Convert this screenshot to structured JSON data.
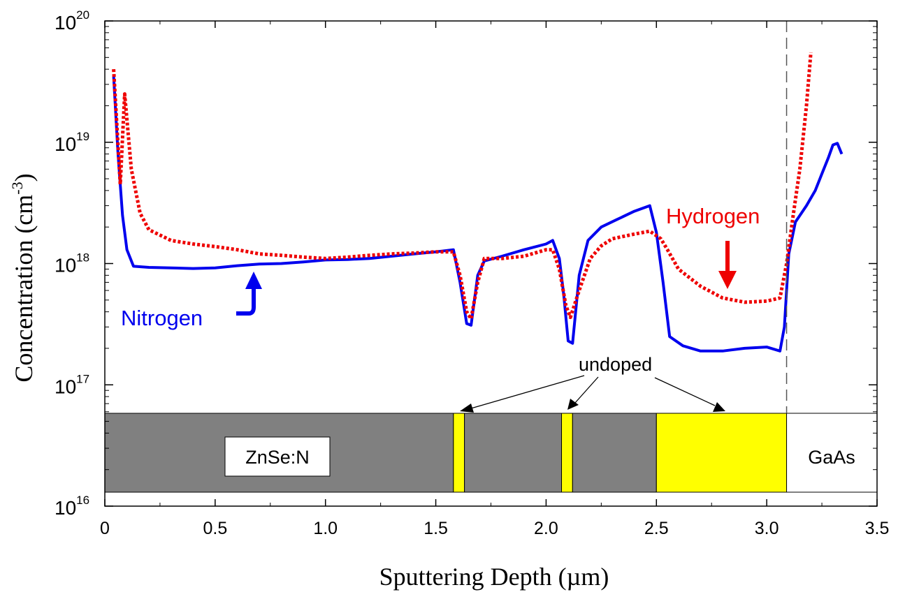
{
  "chart_data": {
    "type": "line",
    "xlabel": "Sputtering Depth (µm)",
    "ylabel": "Concentration (cm⁻³)",
    "ylabel_base": "Concentration (cm",
    "ylabel_exp": "-3",
    "ylabel_tail": ")",
    "xlim": [
      0,
      3.5
    ],
    "ylim": [
      1e+16,
      1e+20
    ],
    "yscale": "log",
    "grid": false,
    "x_ticks": [
      0,
      0.5,
      1.0,
      1.5,
      2.0,
      2.5,
      3.0,
      3.5
    ],
    "x_tick_labels": [
      "0",
      "0.5",
      "1.0",
      "1.5",
      "2.0",
      "2.5",
      "3.0",
      "3.5"
    ],
    "y_ticks": [
      {
        "base": "10",
        "exp": "16",
        "value": 1e+16
      },
      {
        "base": "10",
        "exp": "17",
        "value": 1e+17
      },
      {
        "base": "10",
        "exp": "18",
        "value": 1e+18
      },
      {
        "base": "10",
        "exp": "19",
        "value": 1e+19
      },
      {
        "base": "10",
        "exp": "20",
        "value": 1e+20
      }
    ],
    "series": [
      {
        "name": "Nitrogen",
        "color": "#0000ee",
        "style": "solid",
        "points": [
          [
            0.04,
            3.5e+19
          ],
          [
            0.06,
            8e+18
          ],
          [
            0.08,
            2.5e+18
          ],
          [
            0.1,
            1.3e+18
          ],
          [
            0.13,
            9.5e+17
          ],
          [
            0.2,
            9.3e+17
          ],
          [
            0.3,
            9.2e+17
          ],
          [
            0.4,
            9.1e+17
          ],
          [
            0.5,
            9.2e+17
          ],
          [
            0.6,
            9.6e+17
          ],
          [
            0.7,
            9.9e+17
          ],
          [
            0.8,
            1e+18
          ],
          [
            0.9,
            1.03e+18
          ],
          [
            1.0,
            1.07e+18
          ],
          [
            1.1,
            1.08e+18
          ],
          [
            1.2,
            1.1e+18
          ],
          [
            1.3,
            1.15e+18
          ],
          [
            1.4,
            1.2e+18
          ],
          [
            1.5,
            1.25e+18
          ],
          [
            1.58,
            1.3e+18
          ],
          [
            1.61,
            7e+17
          ],
          [
            1.64,
            3.2e+17
          ],
          [
            1.66,
            3.1e+17
          ],
          [
            1.69,
            8e+17
          ],
          [
            1.72,
            1.05e+18
          ],
          [
            1.8,
            1.15e+18
          ],
          [
            1.9,
            1.3e+18
          ],
          [
            2.0,
            1.45e+18
          ],
          [
            2.03,
            1.55e+18
          ],
          [
            2.06,
            1.1e+18
          ],
          [
            2.08,
            5.5e+17
          ],
          [
            2.1,
            2.3e+17
          ],
          [
            2.12,
            2.2e+17
          ],
          [
            2.15,
            8e+17
          ],
          [
            2.19,
            1.55e+18
          ],
          [
            2.25,
            2e+18
          ],
          [
            2.32,
            2.3e+18
          ],
          [
            2.4,
            2.7e+18
          ],
          [
            2.47,
            3e+18
          ],
          [
            2.5,
            1.8e+18
          ],
          [
            2.53,
            7e+17
          ],
          [
            2.56,
            2.5e+17
          ],
          [
            2.62,
            2.1e+17
          ],
          [
            2.7,
            1.9e+17
          ],
          [
            2.8,
            1.9e+17
          ],
          [
            2.9,
            2e+17
          ],
          [
            3.0,
            2.05e+17
          ],
          [
            3.06,
            1.9e+17
          ],
          [
            3.08,
            3e+17
          ],
          [
            3.1,
            1.2e+18
          ],
          [
            3.13,
            2.2e+18
          ],
          [
            3.18,
            3e+18
          ],
          [
            3.22,
            4e+18
          ],
          [
            3.25,
            5.5e+18
          ],
          [
            3.28,
            7.5e+18
          ],
          [
            3.3,
            9.5e+18
          ],
          [
            3.32,
            9.8e+18
          ],
          [
            3.34,
            8e+18
          ]
        ]
      },
      {
        "name": "Hydrogen",
        "color": "#ee0000",
        "style": "dotted",
        "points": [
          [
            0.04,
            4e+19
          ],
          [
            0.07,
            4.5e+18
          ],
          [
            0.09,
            2.5e+19
          ],
          [
            0.12,
            6e+18
          ],
          [
            0.16,
            2.6e+18
          ],
          [
            0.2,
            1.9e+18
          ],
          [
            0.3,
            1.55e+18
          ],
          [
            0.4,
            1.45e+18
          ],
          [
            0.5,
            1.38e+18
          ],
          [
            0.6,
            1.3e+18
          ],
          [
            0.7,
            1.2e+18
          ],
          [
            0.8,
            1.17e+18
          ],
          [
            0.9,
            1.13e+18
          ],
          [
            1.0,
            1.1e+18
          ],
          [
            1.1,
            1.13e+18
          ],
          [
            1.2,
            1.17e+18
          ],
          [
            1.3,
            1.2e+18
          ],
          [
            1.4,
            1.22e+18
          ],
          [
            1.5,
            1.25e+18
          ],
          [
            1.58,
            1.25e+18
          ],
          [
            1.61,
            8e+17
          ],
          [
            1.64,
            4e+17
          ],
          [
            1.66,
            3.5e+17
          ],
          [
            1.69,
            7e+17
          ],
          [
            1.72,
            1.1e+18
          ],
          [
            1.8,
            1.1e+18
          ],
          [
            1.9,
            1.15e+18
          ],
          [
            2.0,
            1.3e+18
          ],
          [
            2.03,
            1.3e+18
          ],
          [
            2.06,
            9e+17
          ],
          [
            2.09,
            4.5e+17
          ],
          [
            2.11,
            3.6e+17
          ],
          [
            2.15,
            6e+17
          ],
          [
            2.2,
            1.1e+18
          ],
          [
            2.25,
            1.4e+18
          ],
          [
            2.3,
            1.6e+18
          ],
          [
            2.4,
            1.75e+18
          ],
          [
            2.47,
            1.85e+18
          ],
          [
            2.52,
            1.6e+18
          ],
          [
            2.55,
            1.3e+18
          ],
          [
            2.6,
            9e+17
          ],
          [
            2.7,
            6.5e+17
          ],
          [
            2.8,
            5.2e+17
          ],
          [
            2.9,
            4.8e+17
          ],
          [
            3.0,
            4.9e+17
          ],
          [
            3.06,
            5.2e+17
          ],
          [
            3.09,
            1e+18
          ],
          [
            3.12,
            2.5e+18
          ],
          [
            3.15,
            6e+18
          ],
          [
            3.18,
            2e+19
          ],
          [
            3.2,
            5.5e+19
          ]
        ]
      }
    ],
    "annotations": {
      "series_labels": [
        {
          "text": "Hydrogen",
          "color": "#ee0000"
        },
        {
          "text": "Nitrogen",
          "color": "#0000ee"
        }
      ],
      "undoped_note": "undoped",
      "interface_depth": 3.09
    },
    "layer_stack": [
      {
        "from": 0,
        "to": 1.58,
        "fill": "#808080",
        "label": ""
      },
      {
        "from": 1.58,
        "to": 1.63,
        "fill": "#ffff00",
        "label": ""
      },
      {
        "from": 1.63,
        "to": 2.07,
        "fill": "#808080",
        "label": ""
      },
      {
        "from": 2.07,
        "to": 2.12,
        "fill": "#ffff00",
        "label": ""
      },
      {
        "from": 2.12,
        "to": 2.5,
        "fill": "#808080",
        "label": ""
      },
      {
        "from": 2.5,
        "to": 3.09,
        "fill": "#ffff00",
        "label": ""
      },
      {
        "from": 3.09,
        "to": 3.5,
        "fill": "#ffffff",
        "label": ""
      }
    ],
    "layer_labels": {
      "zns": "ZnSe:N",
      "gaas": "GaAs"
    }
  }
}
